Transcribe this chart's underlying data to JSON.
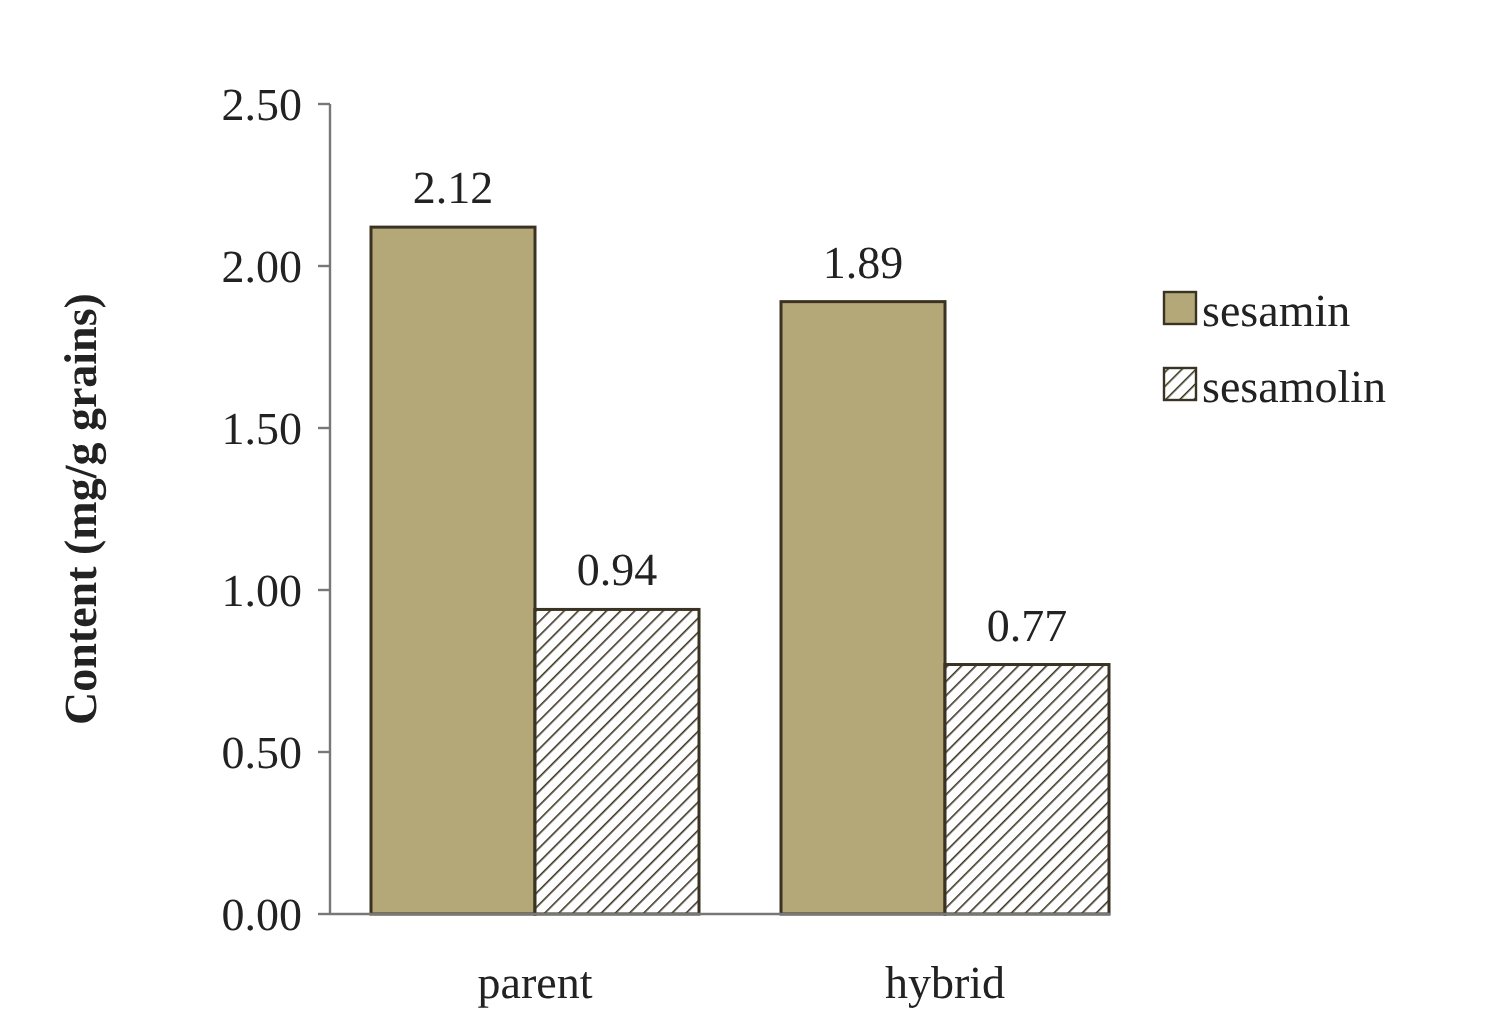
{
  "chart_data": {
    "type": "bar",
    "ylabel": "Content (mg/g grains)",
    "categories": [
      "parent",
      "hybrid"
    ],
    "series": [
      {
        "name": "sesamin",
        "color": "#b5a878",
        "values": [
          2.12,
          1.89
        ]
      },
      {
        "name": "sesamolin",
        "color": "#3a3222",
        "values": [
          0.94,
          0.77
        ]
      }
    ],
    "ylim": [
      0,
      2.5
    ],
    "yticks": [
      {
        "value": 0,
        "label": "0.00"
      },
      {
        "value": 0.5,
        "label": "0.50"
      },
      {
        "value": 1,
        "label": "1.00"
      },
      {
        "value": 1.5,
        "label": "1.50"
      },
      {
        "value": 2,
        "label": "2.00"
      },
      {
        "value": 2.5,
        "label": "2.50"
      }
    ],
    "data_labels": true,
    "legend": "right",
    "grid": false
  }
}
